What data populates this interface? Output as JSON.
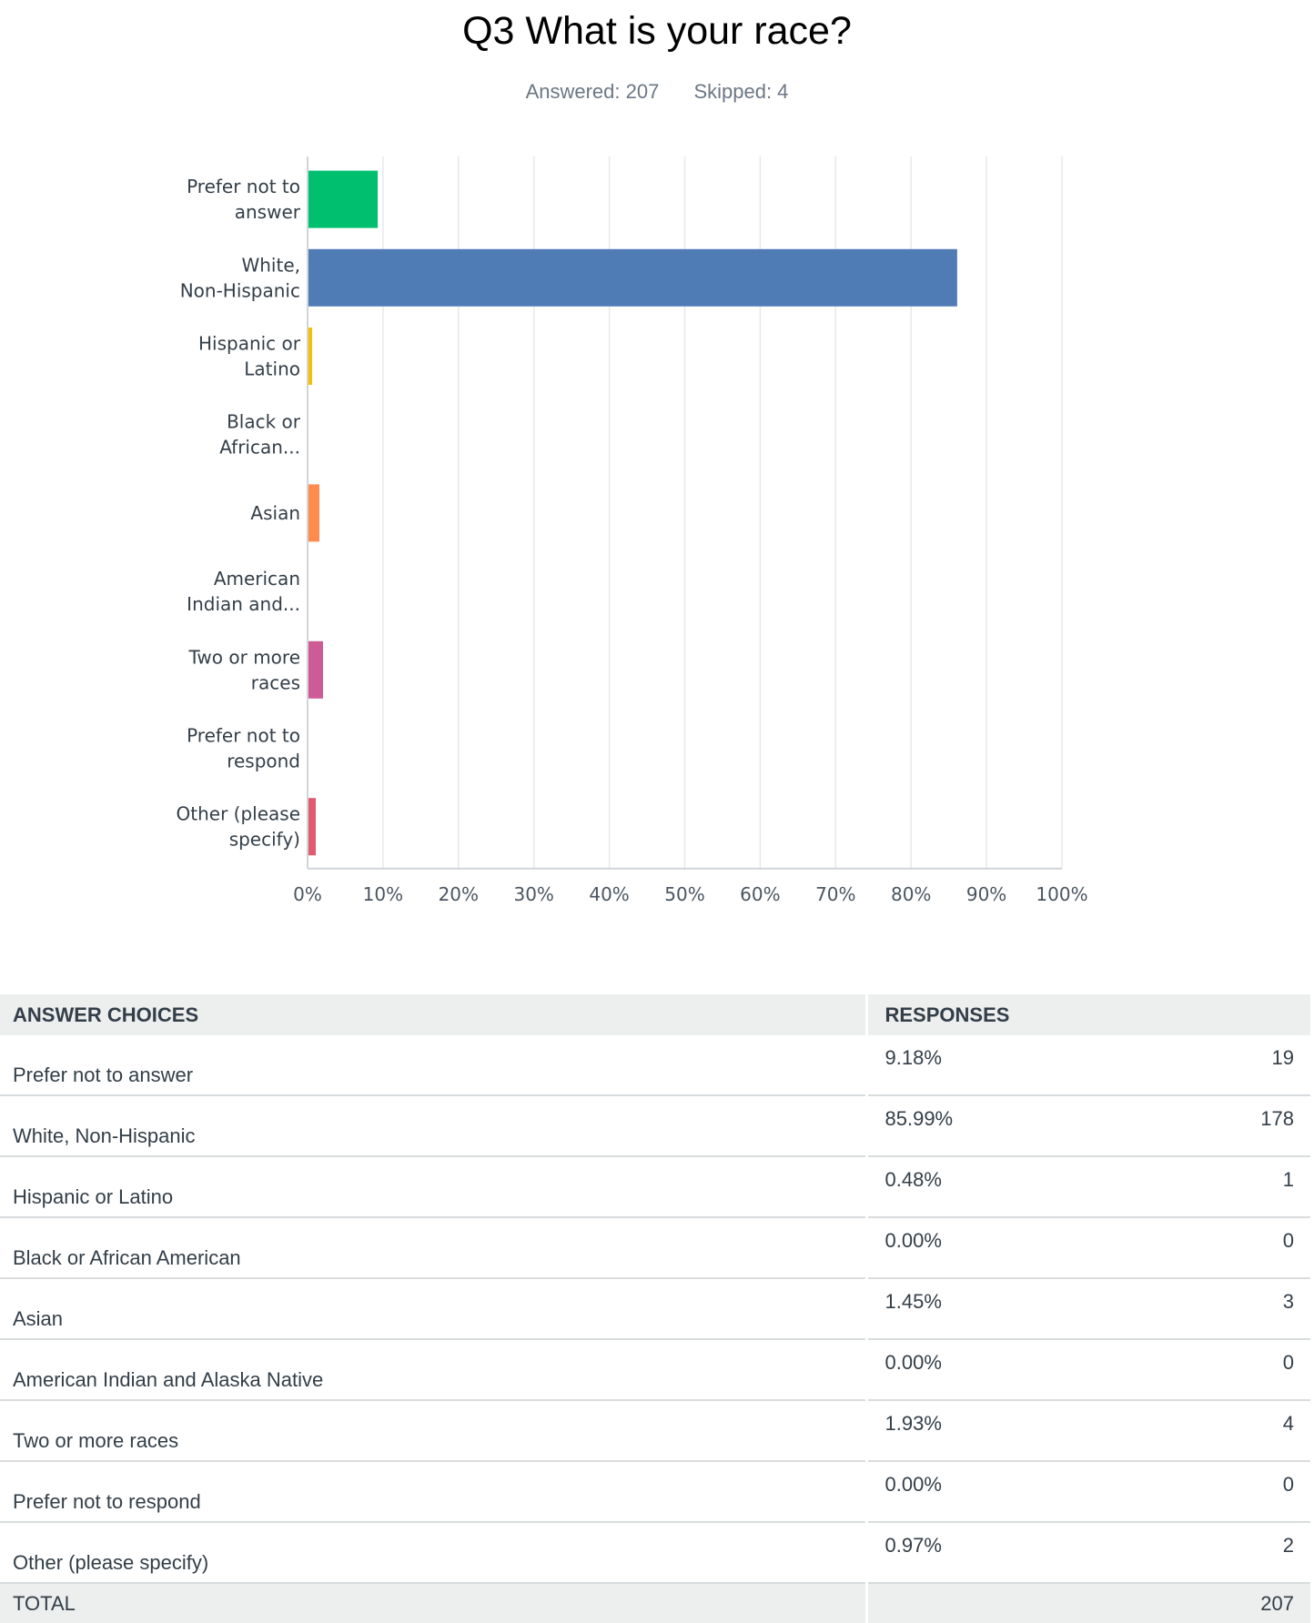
{
  "header": {
    "title": "Q3 What is your race?",
    "answered": "Answered: 207",
    "skipped": "Skipped: 4"
  },
  "chart_data": {
    "type": "bar",
    "orientation": "horizontal",
    "categories": [
      [
        "Prefer not to",
        "answer"
      ],
      [
        "White,",
        "Non-Hispanic"
      ],
      [
        "Hispanic or",
        "Latino"
      ],
      [
        "Black or",
        "African..."
      ],
      [
        "Asian"
      ],
      [
        "American",
        "Indian and..."
      ],
      [
        "Two or more",
        "races"
      ],
      [
        "Prefer not to",
        "respond"
      ],
      [
        "Other (please",
        "specify)"
      ]
    ],
    "values": [
      9.18,
      85.99,
      0.48,
      0.0,
      1.45,
      0.0,
      1.93,
      0.0,
      0.97
    ],
    "colors": [
      "#00bf6f",
      "#507cb6",
      "#f9be00",
      "#6bc8cd",
      "#ff8b4f",
      "#7f7fff",
      "#cd5b96",
      "#8a9ea7",
      "#e05b6f"
    ],
    "xlim": [
      0,
      100
    ],
    "xticks": [
      "0%",
      "10%",
      "20%",
      "30%",
      "40%",
      "50%",
      "60%",
      "70%",
      "80%",
      "90%",
      "100%"
    ],
    "grid": true
  },
  "table": {
    "col_choices": "ANSWER CHOICES",
    "col_responses": "RESPONSES",
    "rows": [
      {
        "choice": "Prefer not to answer",
        "percent": "9.18%",
        "count": "19"
      },
      {
        "choice": "White, Non-Hispanic",
        "percent": "85.99%",
        "count": "178"
      },
      {
        "choice": "Hispanic or Latino",
        "percent": "0.48%",
        "count": "1"
      },
      {
        "choice": "Black or African American",
        "percent": "0.00%",
        "count": "0"
      },
      {
        "choice": "Asian",
        "percent": "1.45%",
        "count": "3"
      },
      {
        "choice": "American Indian and Alaska Native",
        "percent": "0.00%",
        "count": "0"
      },
      {
        "choice": "Two or more races",
        "percent": "1.93%",
        "count": "4"
      },
      {
        "choice": "Prefer not to respond",
        "percent": "0.00%",
        "count": "0"
      },
      {
        "choice": "Other (please specify)",
        "percent": "0.97%",
        "count": "2"
      }
    ],
    "total_label": "TOTAL",
    "total_count": "207"
  }
}
